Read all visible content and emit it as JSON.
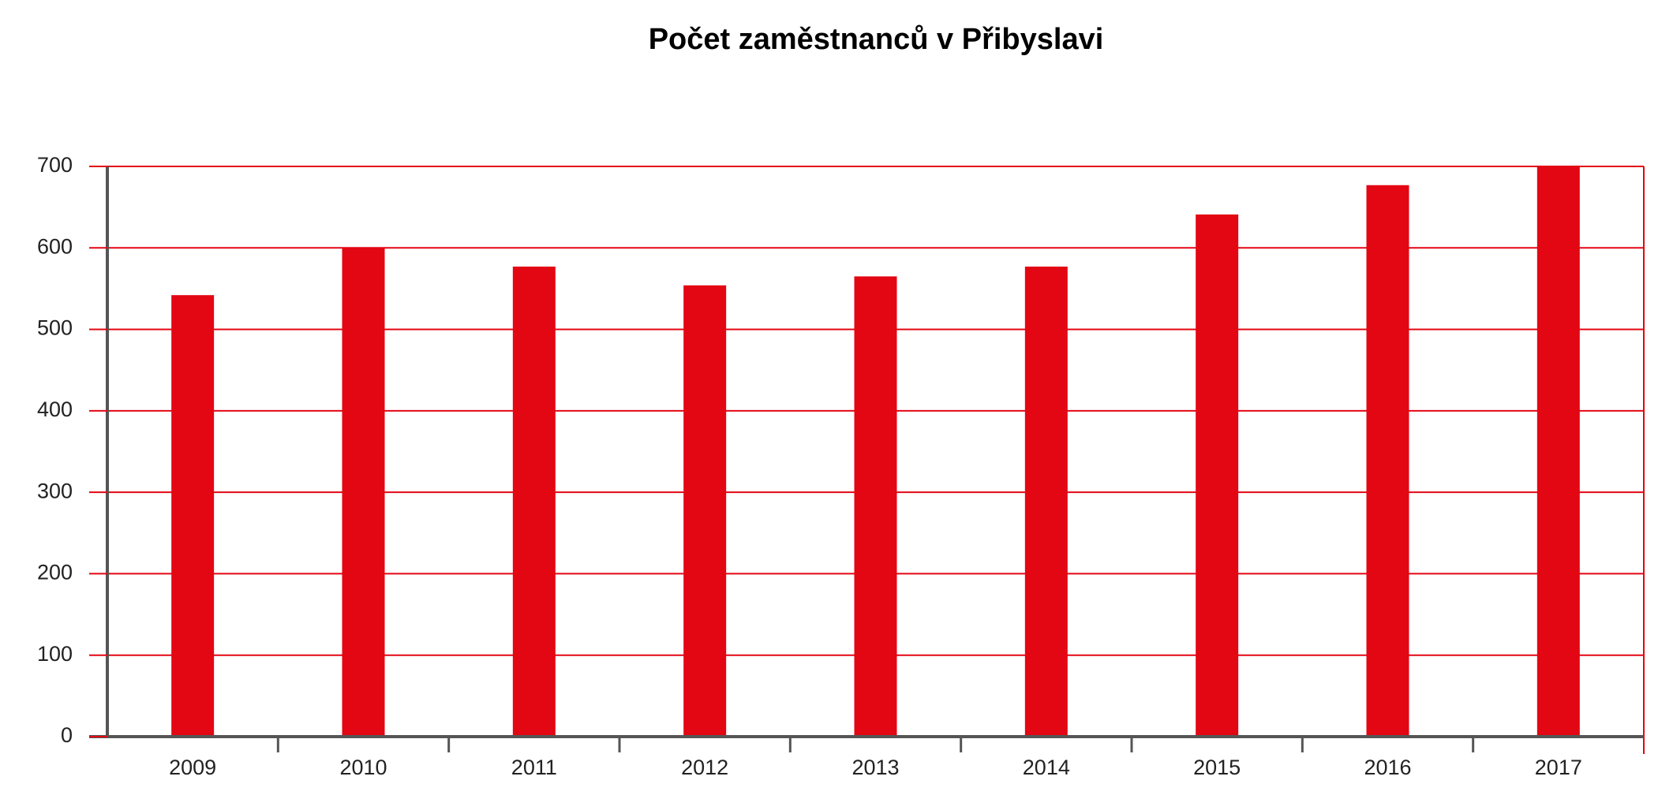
{
  "chart_data": {
    "type": "bar",
    "title": "Počet zaměstnanců v Přibyslavi",
    "categories": [
      "2009",
      "2010",
      "2011",
      "2012",
      "2013",
      "2014",
      "2015",
      "2016",
      "2017"
    ],
    "values": [
      542,
      600,
      577,
      554,
      565,
      577,
      641,
      677,
      700
    ],
    "color": "#e30613",
    "ylim": [
      0,
      700
    ],
    "yticks": [
      0,
      100,
      200,
      300,
      400,
      500,
      600,
      700
    ],
    "grid": true,
    "grid_color": "#e30613"
  }
}
